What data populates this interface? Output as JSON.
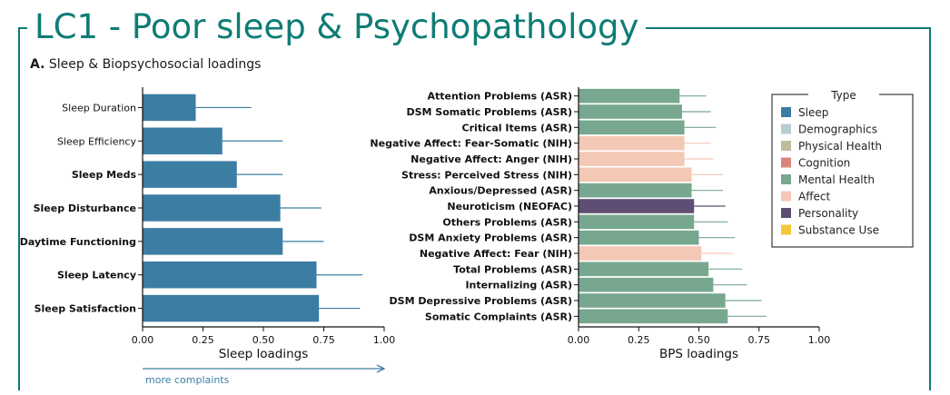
{
  "title": "LC1 - Poor sleep & Psychopathology",
  "panel": {
    "letter": "A.",
    "label": "Sleep & Biopsychosocial loadings"
  },
  "colors": {
    "frame": "#0e7c74",
    "Sleep": "#3c7da3",
    "Demographics": "#b6cdd2",
    "Physical Health": "#bdbd9b",
    "Cognition": "#d98579",
    "Mental Health": "#77a88f",
    "Affect": "#f3c8b5",
    "Personality": "#5e4e73",
    "Substance Use": "#efc93a"
  },
  "annotation": {
    "arrow_label": "more complaints"
  },
  "chart_data": [
    {
      "type": "bar",
      "orientation": "horizontal",
      "xlabel": "Sleep loadings",
      "xlim": [
        0,
        1
      ],
      "xticks": [
        "0.00",
        "0.25",
        "0.50",
        "0.75",
        "1.00"
      ],
      "categories": [
        "Sleep Duration",
        "Sleep Efficiency",
        "Sleep Meds",
        "Sleep Disturbance",
        "Daytime Functioning",
        "Sleep Latency",
        "Sleep Satisfaction"
      ],
      "values": [
        0.22,
        0.33,
        0.39,
        0.57,
        0.58,
        0.72,
        0.73
      ],
      "error_upper": [
        0.45,
        0.58,
        0.58,
        0.74,
        0.75,
        0.91,
        0.9
      ],
      "types": [
        "Sleep",
        "Sleep",
        "Sleep",
        "Sleep",
        "Sleep",
        "Sleep",
        "Sleep"
      ]
    },
    {
      "type": "bar",
      "orientation": "horizontal",
      "xlabel": "BPS loadings",
      "xlim": [
        0,
        1
      ],
      "xticks": [
        "0.00",
        "0.25",
        "0.50",
        "0.75",
        "1.00"
      ],
      "categories": [
        "Attention Problems (ASR)",
        "DSM Somatic Problems (ASR)",
        "Critical Items (ASR)",
        "Negative Affect: Fear-Somatic (NIH)",
        "Negative Affect: Anger (NIH)",
        "Stress: Perceived Stress (NIH)",
        "Anxious/Depressed (ASR)",
        "Neuroticism (NEOFAC)",
        "Others Problems (ASR)",
        "DSM Anxiety Problems (ASR)",
        "Negative Affect: Fear (NIH)",
        "Total Problems (ASR)",
        "Internalizing (ASR)",
        "DSM Depressive Problems (ASR)",
        "Somatic Complaints (ASR)"
      ],
      "values": [
        0.42,
        0.43,
        0.44,
        0.44,
        0.44,
        0.47,
        0.47,
        0.48,
        0.48,
        0.5,
        0.51,
        0.54,
        0.56,
        0.61,
        0.62
      ],
      "error_upper": [
        0.53,
        0.55,
        0.57,
        0.55,
        0.56,
        0.6,
        0.6,
        0.61,
        0.62,
        0.65,
        0.64,
        0.68,
        0.7,
        0.76,
        0.78
      ],
      "types": [
        "Mental Health",
        "Mental Health",
        "Mental Health",
        "Affect",
        "Affect",
        "Affect",
        "Mental Health",
        "Personality",
        "Mental Health",
        "Mental Health",
        "Affect",
        "Mental Health",
        "Mental Health",
        "Mental Health",
        "Mental Health"
      ]
    }
  ],
  "legend": {
    "title": "Type",
    "items": [
      "Sleep",
      "Demographics",
      "Physical Health",
      "Cognition",
      "Mental Health",
      "Affect",
      "Personality",
      "Substance Use"
    ]
  }
}
